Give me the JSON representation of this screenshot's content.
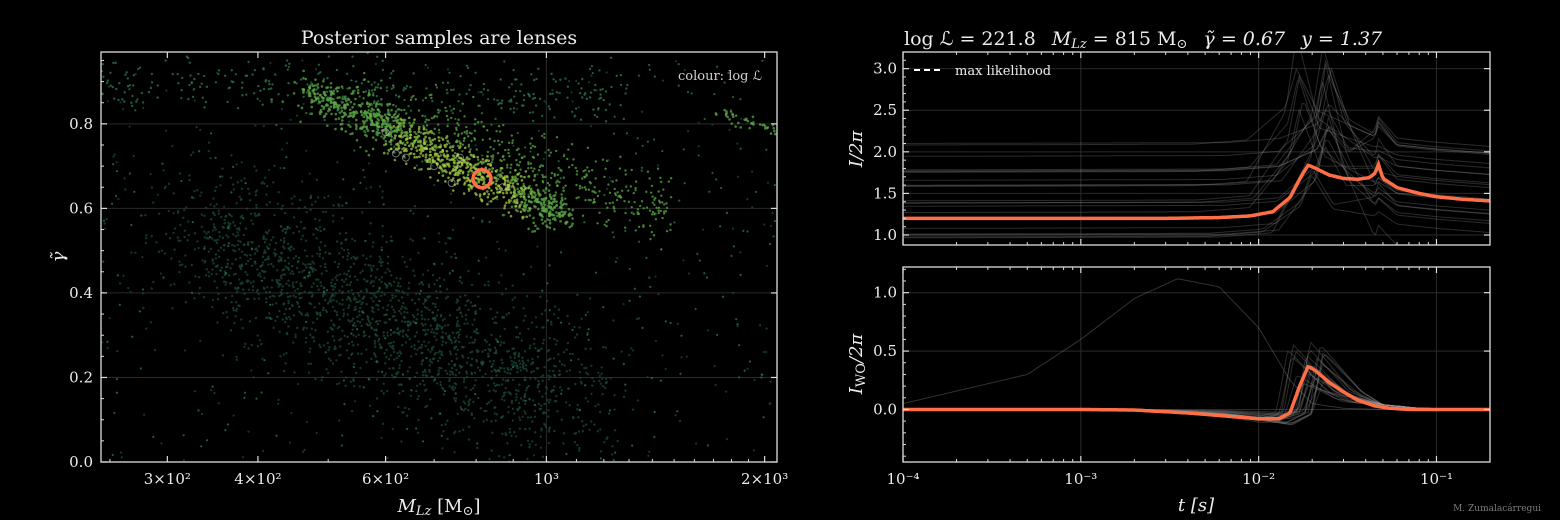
{
  "chart_data": [
    {
      "type": "scatter",
      "title": "Posterior samples are lenses",
      "xlabel": "M_Lz [M_⊙]",
      "ylabel": "γ̃",
      "xscale": "log",
      "xlim": [
        243,
        2080
      ],
      "ylim": [
        0.0,
        0.97
      ],
      "x_tick_labels": [
        "3×10²",
        "4×10²",
        "6×10²",
        "10³",
        "2×10³"
      ],
      "x_ticks": [
        300,
        400,
        600,
        1000,
        2000
      ],
      "y_ticks": [
        0.0,
        0.2,
        0.4,
        0.6,
        0.8
      ],
      "y_tick_labels": [
        "0.0",
        "0.2",
        "0.4",
        "0.6",
        "0.8"
      ],
      "annotation": "colour: log ℒ",
      "colormap": [
        "#1b4a3e",
        "#2e7d4f",
        "#5aa845",
        "#a3c944"
      ],
      "grid": true,
      "clusters": [
        {
          "name": "",
          "description_points": [
            [
              520,
              0.86
            ],
            [
              800,
              0.7
            ],
            [
              1000,
              0.6
            ]
          ],
          "relative_log_likelihood": "high"
        },
        {
          "name": "",
          "description_points": [
            [
              300,
              0.9
            ],
            [
              1200,
              0.68
            ]
          ],
          "relative_log_likelihood": "medium"
        },
        {
          "name": "",
          "description_points": [
            [
              450,
              0.5
            ],
            [
              700,
              0.2
            ],
            [
              1300,
              0.1
            ]
          ],
          "relative_log_likelihood": "low"
        }
      ],
      "highlight": {
        "x": 815,
        "y": 0.67,
        "color": "#ff6f47",
        "marker": "open-circle"
      }
    },
    {
      "type": "line",
      "xscale": "log",
      "xlim": [
        0.0001,
        0.2
      ],
      "ylim": [
        0.88,
        3.2
      ],
      "ylabel": "I/2π",
      "y_ticks": [
        1.0,
        1.5,
        2.0,
        2.5,
        3.0
      ],
      "y_tick_labels": [
        "1.0",
        "1.5",
        "2.0",
        "2.5",
        "3.0"
      ],
      "legend": {
        "label": "max likelihood",
        "position": "top-left"
      },
      "series": [
        {
          "name": "max likelihood",
          "color": "#ff6f47",
          "x": [
            0.0001,
            0.001,
            0.003,
            0.006,
            0.009,
            0.012,
            0.015,
            0.0175,
            0.019,
            0.021,
            0.025,
            0.03,
            0.036,
            0.042,
            0.0455,
            0.047,
            0.05,
            0.06,
            0.08,
            0.1,
            0.14,
            0.2
          ],
          "y": [
            1.2,
            1.2,
            1.2,
            1.21,
            1.23,
            1.28,
            1.45,
            1.72,
            1.84,
            1.8,
            1.72,
            1.68,
            1.67,
            1.69,
            1.75,
            1.86,
            1.68,
            1.57,
            1.5,
            1.46,
            1.43,
            1.41
          ]
        }
      ]
    },
    {
      "type": "line",
      "xscale": "log",
      "xlim": [
        0.0001,
        0.2
      ],
      "ylim": [
        -0.45,
        1.22
      ],
      "xlabel": "t [s]",
      "ylabel": "I_WO/2π",
      "x_ticks": [
        0.0001,
        0.001,
        0.01,
        0.1
      ],
      "x_tick_labels": [
        "10⁻⁴",
        "10⁻³",
        "10⁻²",
        "10⁻¹"
      ],
      "y_ticks": [
        0.0,
        0.5,
        1.0
      ],
      "y_tick_labels": [
        "0.0",
        "0.5",
        "1.0"
      ],
      "series": [
        {
          "name": "max likelihood",
          "color": "#ff6f47",
          "x": [
            0.0001,
            0.001,
            0.002,
            0.004,
            0.007,
            0.01,
            0.013,
            0.015,
            0.017,
            0.019,
            0.021,
            0.025,
            0.03,
            0.036,
            0.045,
            0.055,
            0.07,
            0.1,
            0.2
          ],
          "y": [
            0.0,
            0.0,
            -0.005,
            -0.03,
            -0.06,
            -0.08,
            -0.08,
            -0.03,
            0.2,
            0.37,
            0.33,
            0.23,
            0.15,
            0.08,
            0.03,
            0.01,
            0.0,
            0.0,
            0.0
          ]
        }
      ]
    }
  ],
  "right_title": {
    "loglike": "log ℒ = 221.8",
    "mass": "M",
    "mass_sub": "Lz",
    "mass_val": " = 815 M",
    "mass_unit_sub": "⊙",
    "gamma": "γ̃ = 0.67",
    "y": "y = 1.37"
  },
  "credit": "M. Zumalacárregui"
}
